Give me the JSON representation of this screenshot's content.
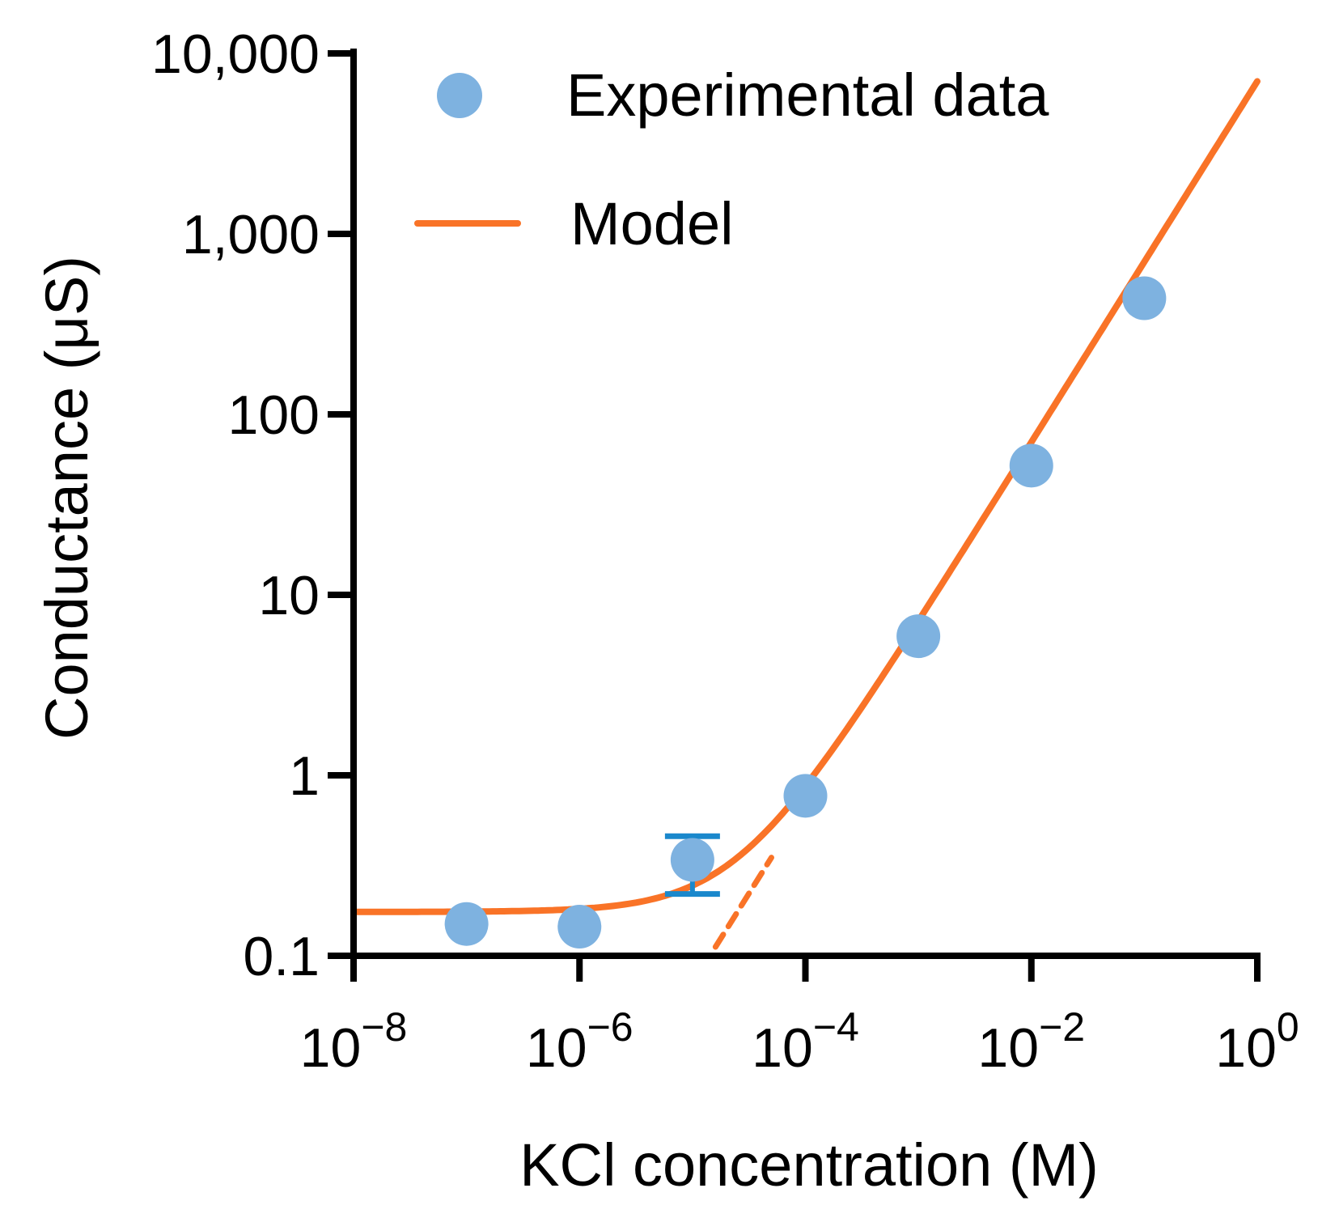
{
  "chart_data": {
    "type": "scatter",
    "title": "",
    "xlabel": "KCl concentration (M)",
    "ylabel": "Conductance (μS)",
    "x_scale": "log",
    "y_scale": "log",
    "xlim": [
      1e-08,
      1
    ],
    "ylim": [
      0.1,
      10000
    ],
    "grid": false,
    "legend_position": "top-left",
    "x_ticks": [
      {
        "value": 1e-08,
        "base": "10",
        "exp": "−8"
      },
      {
        "value": 1e-06,
        "base": "10",
        "exp": "−6"
      },
      {
        "value": 0.0001,
        "base": "10",
        "exp": "−4"
      },
      {
        "value": 0.01,
        "base": "10",
        "exp": "−2"
      },
      {
        "value": 1,
        "base": "10",
        "exp": "0"
      }
    ],
    "y_ticks": [
      {
        "value": 0.1,
        "label": "0.1"
      },
      {
        "value": 1,
        "label": "1"
      },
      {
        "value": 10,
        "label": "10"
      },
      {
        "value": 100,
        "label": "100"
      },
      {
        "value": 1000,
        "label": "1,000"
      },
      {
        "value": 10000,
        "label": "10,000"
      }
    ],
    "series": [
      {
        "name": "Experimental data",
        "kind": "scatter",
        "color": "#7eb2e0",
        "error_color": "#1a88cc",
        "points": [
          {
            "x": 1e-07,
            "y": 0.15
          },
          {
            "x": 1e-06,
            "y": 0.145
          },
          {
            "x": 1e-05,
            "y": 0.34,
            "y_err_low": 0.22,
            "y_err_high": 0.46
          },
          {
            "x": 0.0001,
            "y": 0.77
          },
          {
            "x": 0.001,
            "y": 5.9
          },
          {
            "x": 0.01,
            "y": 52
          },
          {
            "x": 0.1,
            "y": 440
          }
        ]
      },
      {
        "name": "Model",
        "kind": "line",
        "color": "#f97327",
        "plateau": 0.175,
        "slope_coefficient": 7000,
        "x_range": [
          1e-08,
          1
        ]
      },
      {
        "name": "",
        "kind": "dashed-line",
        "color": "#f97327",
        "slope_coefficient": 7000,
        "x_range": [
          1.6e-05,
          5e-05
        ]
      }
    ]
  }
}
